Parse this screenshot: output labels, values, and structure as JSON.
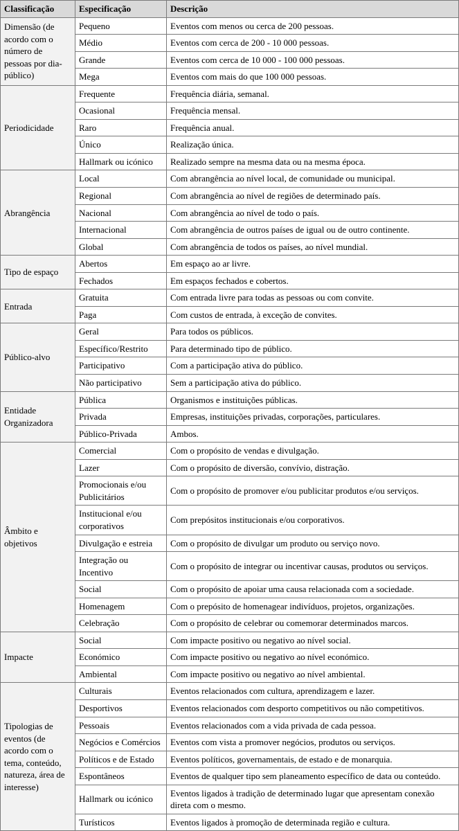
{
  "headers": {
    "c1": "Classificação",
    "c2": "Especificação",
    "c3": "Descrição"
  },
  "groups": [
    {
      "label": "Dimensão (de acordo com o número de pessoas por dia-público)",
      "rows": [
        {
          "spec": "Pequeno",
          "desc": "Eventos com menos ou cerca de 200 pessoas."
        },
        {
          "spec": "Médio",
          "desc": "Eventos com cerca de 200 - 10 000 pessoas."
        },
        {
          "spec": "Grande",
          "desc": "Eventos com cerca de 10 000 - 100 000 pessoas."
        },
        {
          "spec": "Mega",
          "desc": "Eventos com mais do que 100 000 pessoas."
        }
      ]
    },
    {
      "label": "Periodicidade",
      "rows": [
        {
          "spec": "Frequente",
          "desc": "Frequência diária, semanal."
        },
        {
          "spec": "Ocasional",
          "desc": "Frequência mensal."
        },
        {
          "spec": "Raro",
          "desc": "Frequência anual."
        },
        {
          "spec": "Único",
          "desc": "Realização única."
        },
        {
          "spec": "Hallmark ou icónico",
          "desc": "Realizado sempre na mesma data ou na mesma época."
        }
      ]
    },
    {
      "label": "Abrangência",
      "rows": [
        {
          "spec": "Local",
          "desc": "Com abrangência ao nível local, de comunidade ou municipal."
        },
        {
          "spec": "Regional",
          "desc": "Com abrangência ao nível de regiões de determinado país."
        },
        {
          "spec": "Nacional",
          "desc": "Com abrangência ao nível de todo o país."
        },
        {
          "spec": "Internacional",
          "desc": "Com abrangência de outros países de igual ou de outro continente."
        },
        {
          "spec": "Global",
          "desc": "Com abrangência de todos os países, ao nível mundial."
        }
      ]
    },
    {
      "label": "Tipo de espaço",
      "rows": [
        {
          "spec": "Abertos",
          "desc": "Em espaço ao ar livre."
        },
        {
          "spec": "Fechados",
          "desc": "Em espaços fechados e cobertos."
        }
      ]
    },
    {
      "label": "Entrada",
      "rows": [
        {
          "spec": "Gratuita",
          "desc": "Com entrada livre para todas as pessoas ou com convite."
        },
        {
          "spec": "Paga",
          "desc": "Com custos de entrada, à exceção de convites."
        }
      ]
    },
    {
      "label": "Público-alvo",
      "rows": [
        {
          "spec": "Geral",
          "desc": "Para todos os públicos."
        },
        {
          "spec": "Específico/Restrito",
          "desc": "Para determinado tipo de público."
        },
        {
          "spec": "Participativo",
          "desc": "Com a participação ativa do público."
        },
        {
          "spec": "Não participativo",
          "desc": "Sem a participação ativa do público."
        }
      ]
    },
    {
      "label": "Entidade Organizadora",
      "rows": [
        {
          "spec": "Pública",
          "desc": "Organismos e instituições públicas."
        },
        {
          "spec": "Privada",
          "desc": "Empresas, instituições privadas, corporações, particulares."
        },
        {
          "spec": "Público-Privada",
          "desc": "Ambos."
        }
      ]
    },
    {
      "label": "Âmbito e objetivos",
      "rows": [
        {
          "spec": "Comercial",
          "desc": "Com o propósito de vendas e divulgação."
        },
        {
          "spec": "Lazer",
          "desc": "Com o propósito de diversão, convívio, distração."
        },
        {
          "spec": "Promocionais e/ou Publicitários",
          "desc": "Com o propósito de promover e/ou publicitar produtos e/ou serviços."
        },
        {
          "spec": "Institucional e/ou corporativos",
          "desc": "Com prepósitos institucionais e/ou corporativos."
        },
        {
          "spec": "Divulgação e estreia",
          "desc": "Com o propósito de divulgar um produto ou serviço novo."
        },
        {
          "spec": "Integração ou Incentivo",
          "desc": "Com o propósito de integrar ou incentivar causas, produtos ou serviços."
        },
        {
          "spec": "Social",
          "desc": "Com o propósito de apoiar uma causa relacionada com a sociedade."
        },
        {
          "spec": "Homenagem",
          "desc": "Com o prepósito de homenagear indivíduos, projetos, organizações."
        },
        {
          "spec": "Celebração",
          "desc": "Com o propósito de celebrar ou comemorar determinados marcos."
        }
      ]
    },
    {
      "label": "Impacte",
      "rows": [
        {
          "spec": "Social",
          "desc": "Com impacte positivo ou negativo ao nível social."
        },
        {
          "spec": "Económico",
          "desc": "Com impacte positivo ou negativo ao nível económico."
        },
        {
          "spec": "Ambiental",
          "desc": "Com impacte positivo ou negativo ao nível ambiental."
        }
      ]
    },
    {
      "label": "Tipologias de eventos (de acordo com o tema, conteúdo, natureza, área de interesse)",
      "rows": [
        {
          "spec": "Culturais",
          "desc": "Eventos relacionados com cultura, aprendizagem e lazer."
        },
        {
          "spec": "Desportivos",
          "desc": "Eventos relacionados com desporto competitivos ou não competitivos."
        },
        {
          "spec": "Pessoais",
          "desc": "Eventos relacionados com a vida privada de cada pessoa."
        },
        {
          "spec": "Negócios e Comércios",
          "desc": "Eventos com vista a promover negócios, produtos ou serviços."
        },
        {
          "spec": "Políticos e de Estado",
          "desc": "Eventos políticos, governamentais, de estado e de monarquia."
        },
        {
          "spec": "Espontâneos",
          "desc": "Eventos de qualquer tipo sem planeamento específico de data ou conteúdo."
        },
        {
          "spec": "Hallmark ou icónico",
          "desc": "Eventos ligados à tradição de determinado lugar que apresentam conexão direta com o mesmo."
        },
        {
          "spec": "Turísticos",
          "desc": "Eventos ligados à promoção de determinada região e cultura."
        }
      ]
    }
  ]
}
